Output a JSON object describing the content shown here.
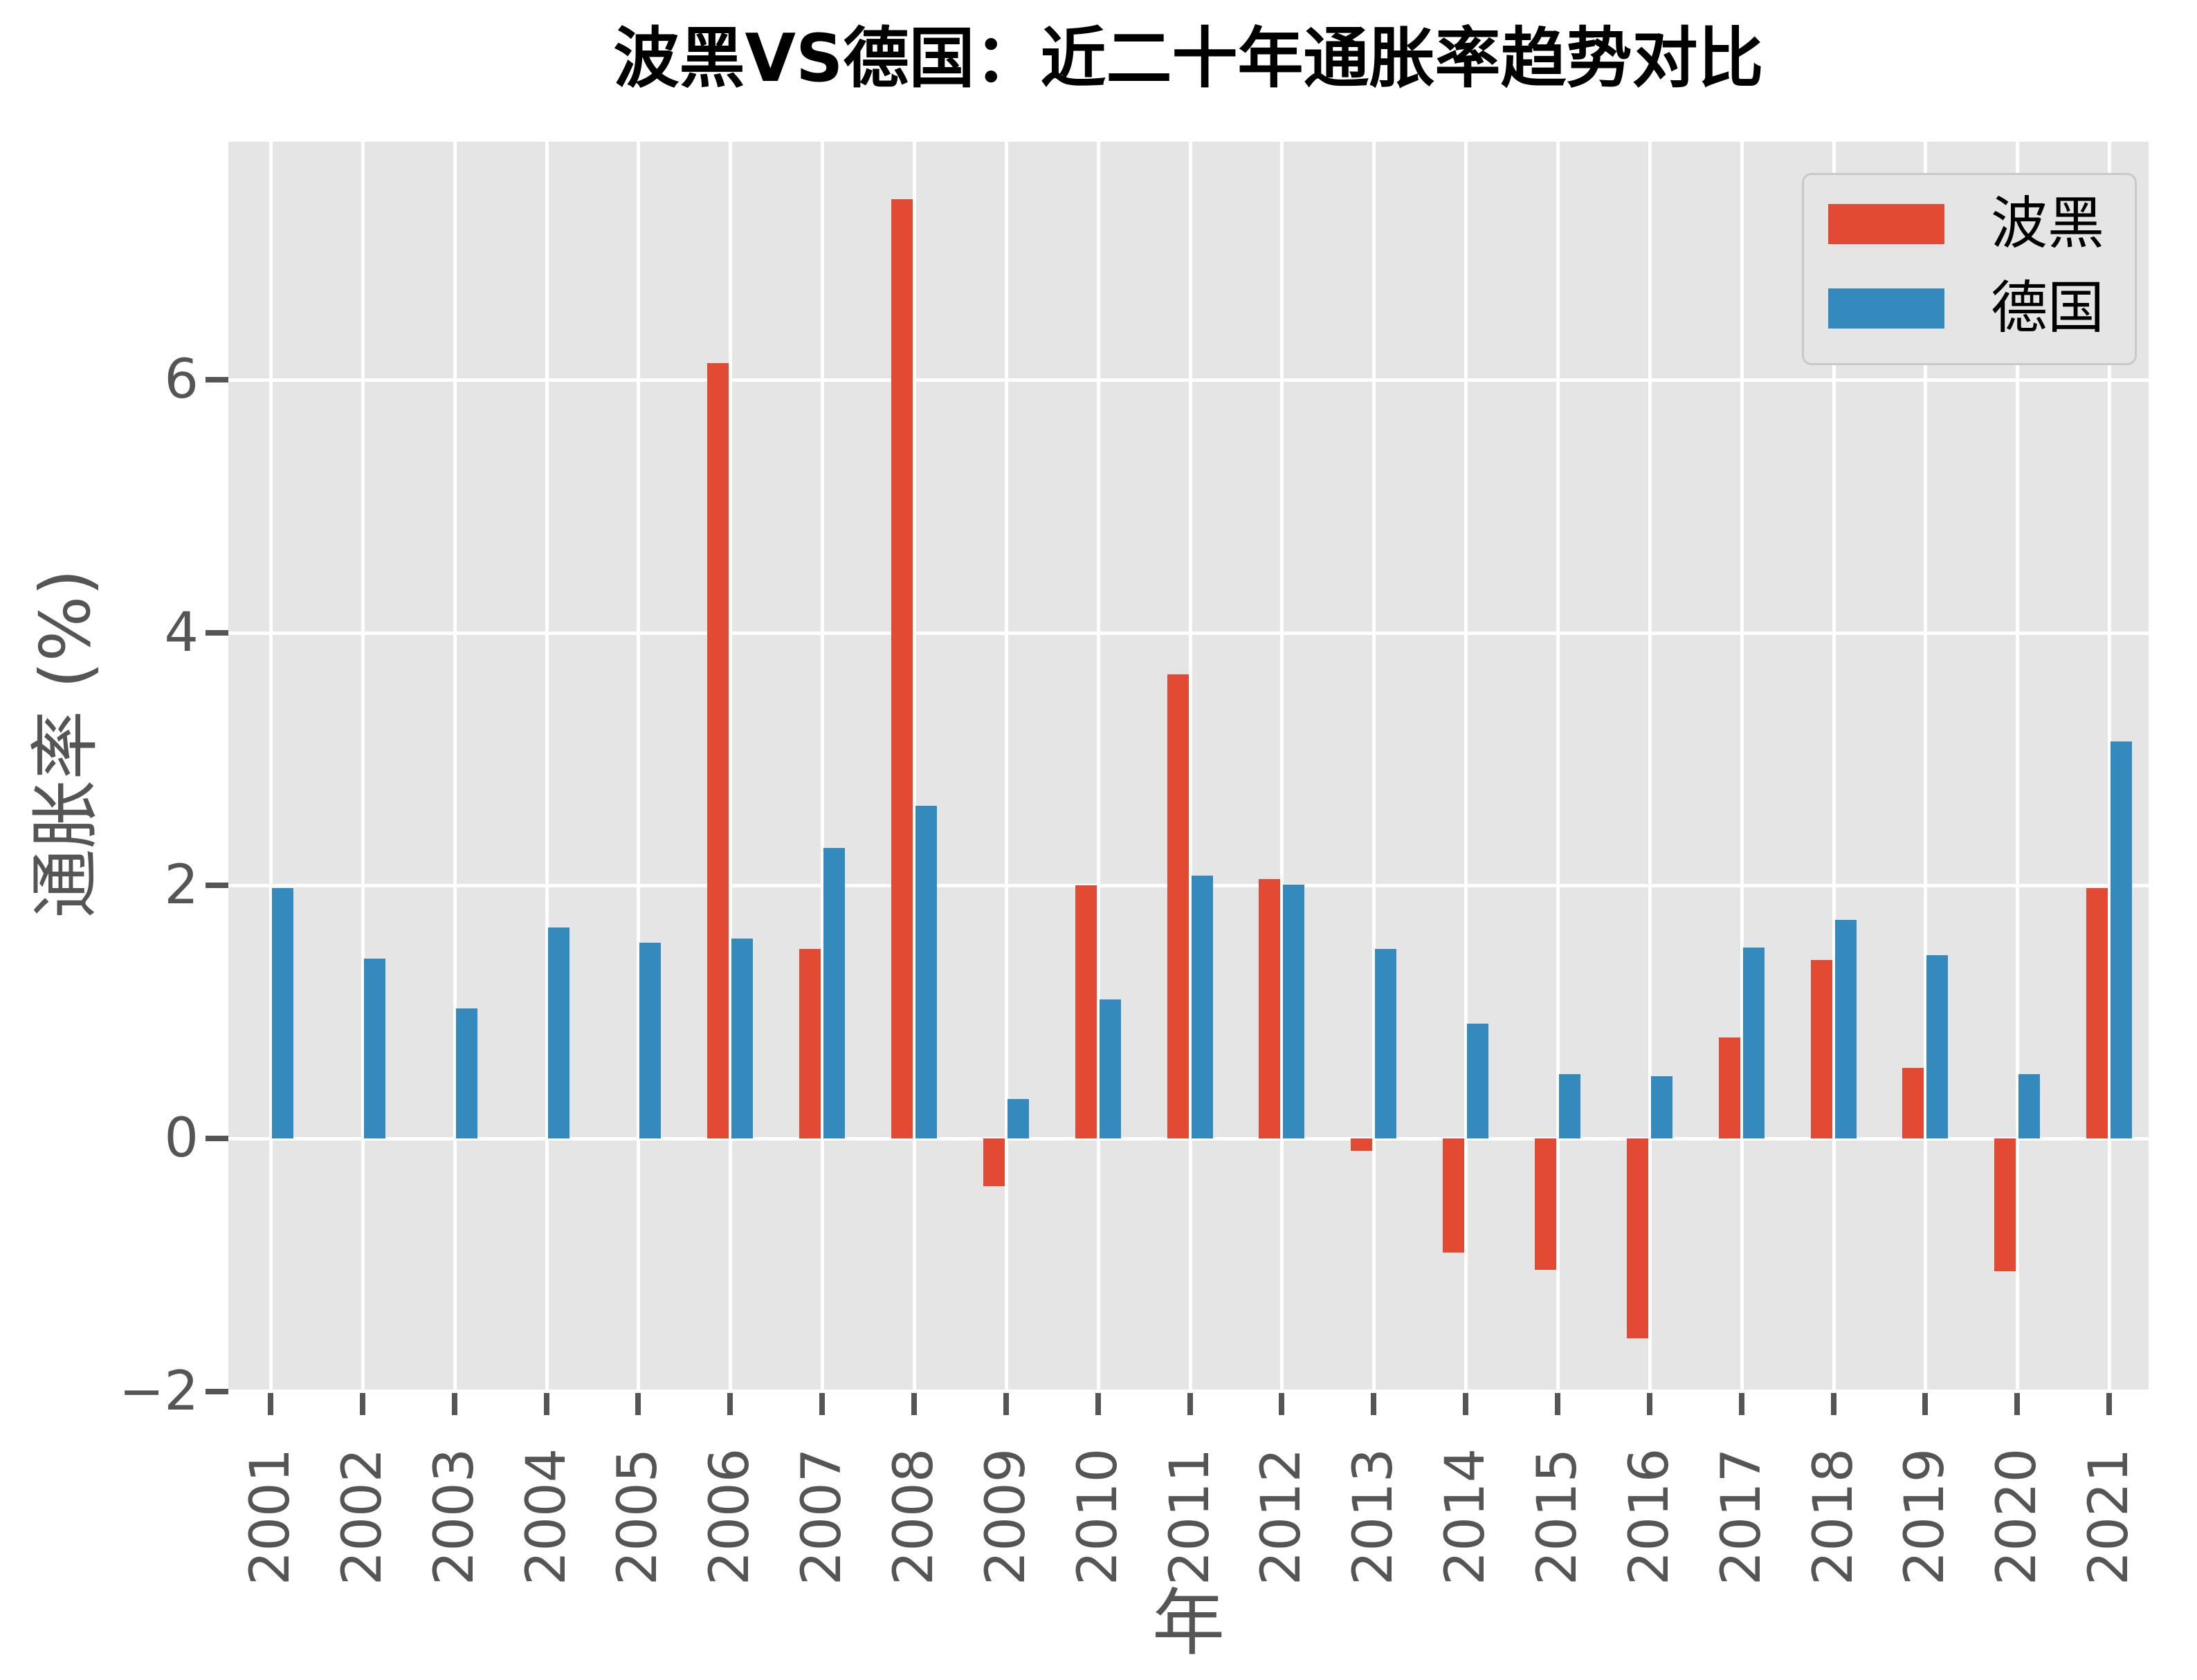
{
  "title": "波黑VS德国：近二十年通胀率趋势对比",
  "chart_data": {
    "type": "bar",
    "title": "波黑VS德国：近二十年通胀率趋势对比",
    "xlabel": "年",
    "ylabel": "通胀率 (%)",
    "categories": [
      "2001",
      "2002",
      "2003",
      "2004",
      "2005",
      "2006",
      "2007",
      "2008",
      "2009",
      "2010",
      "2011",
      "2012",
      "2013",
      "2014",
      "2015",
      "2016",
      "2017",
      "2018",
      "2019",
      "2020",
      "2021"
    ],
    "series": [
      {
        "id": "bosnia",
        "name": "波黑",
        "color": "#E24A33",
        "values": [
          null,
          null,
          null,
          null,
          null,
          6.13,
          1.5,
          7.43,
          -0.38,
          2.0,
          3.67,
          2.05,
          -0.1,
          -0.9,
          -1.04,
          -1.58,
          0.8,
          1.41,
          0.56,
          -1.05,
          1.98
        ]
      },
      {
        "id": "germany",
        "name": "德国",
        "color": "#348ABD",
        "values": [
          1.98,
          1.42,
          1.03,
          1.67,
          1.55,
          1.58,
          2.3,
          2.63,
          0.31,
          1.1,
          2.08,
          2.01,
          1.5,
          0.91,
          0.51,
          0.49,
          1.51,
          1.73,
          1.45,
          0.51,
          3.14
        ]
      }
    ],
    "ylim": [
      -2.0,
      7.88
    ],
    "yticks": [
      -2,
      0,
      2,
      4,
      6
    ],
    "ytick_labels": [
      "−2",
      "0",
      "2",
      "4",
      "6"
    ],
    "grid": true,
    "legend_position": "upper right",
    "plot_background": "#E5E5E5",
    "gridline_color": "#ffffff",
    "tick_text_color": "#555555",
    "title_color": "#000000"
  }
}
